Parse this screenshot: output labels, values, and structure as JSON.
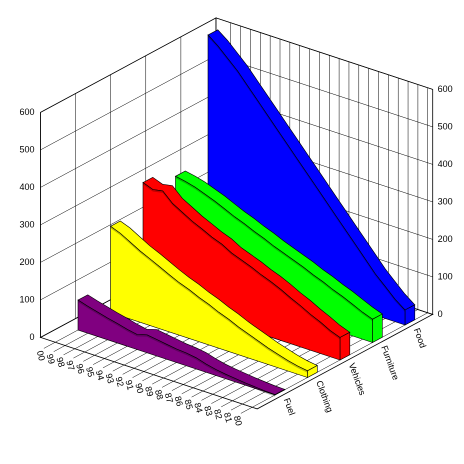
{
  "chart_data": {
    "type": "area3d",
    "categories": [
      "00",
      "99",
      "98",
      "97",
      "96",
      "95",
      "94",
      "93",
      "92",
      "91",
      "90",
      "89",
      "88",
      "87",
      "86",
      "85",
      "84",
      "83",
      "82",
      "81",
      "80"
    ],
    "series": [
      {
        "name": "Fuel",
        "color": "#800080",
        "values": [
          80,
          72,
          65,
          58,
          52,
          45,
          40,
          48,
          44,
          40,
          36,
          34,
          30,
          22,
          16,
          12,
          9,
          6,
          4,
          2,
          1
        ]
      },
      {
        "name": "Clothing",
        "color": "#ffff00",
        "values": [
          230,
          220,
          205,
          190,
          178,
          165,
          152,
          140,
          130,
          118,
          108,
          96,
          86,
          74,
          64,
          54,
          44,
          36,
          28,
          22,
          18
        ]
      },
      {
        "name": "Vehicles",
        "color": "#ff0000",
        "values": [
          300,
          290,
          295,
          270,
          255,
          240,
          228,
          215,
          205,
          190,
          180,
          170,
          158,
          148,
          136,
          122,
          110,
          96,
          84,
          70,
          60
        ]
      },
      {
        "name": "Furniture",
        "color": "#00ff00",
        "values": [
          270,
          265,
          258,
          248,
          238,
          226,
          214,
          204,
          192,
          182,
          170,
          160,
          150,
          140,
          128,
          118,
          106,
          96,
          84,
          72,
          62
        ]
      },
      {
        "name": "Food",
        "color": "#0000ff",
        "values": [
          600,
          580,
          555,
          530,
          500,
          470,
          440,
          410,
          380,
          350,
          320,
          290,
          260,
          230,
          200,
          170,
          140,
          110,
          85,
          60,
          40
        ]
      }
    ],
    "ylim": [
      0,
      600
    ],
    "yticks": [
      0,
      100,
      200,
      300,
      400,
      500,
      600
    ],
    "grid": true
  }
}
